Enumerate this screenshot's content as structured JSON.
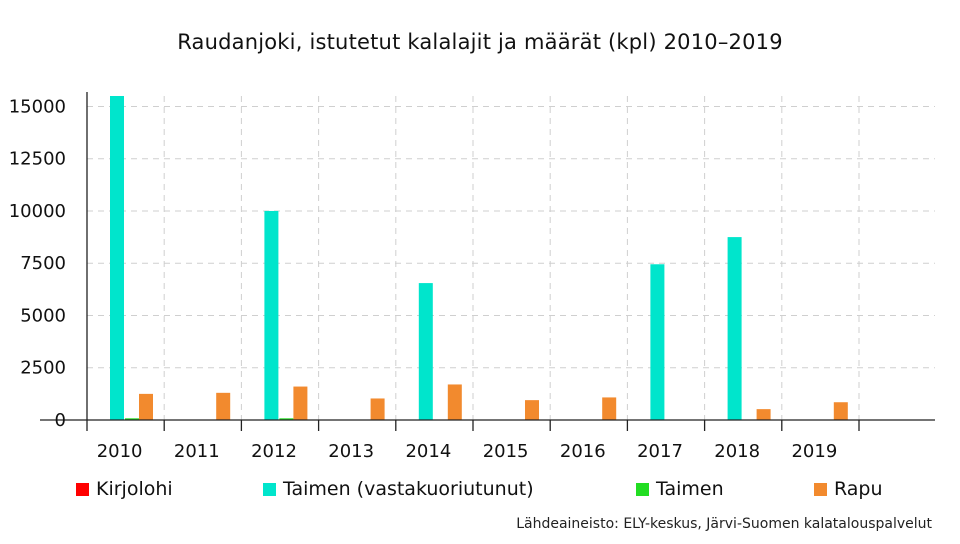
{
  "chart_data": {
    "type": "bar",
    "title": "Raudanjoki, istutetut kalalajit ja määrät (kpl) 2010–2019",
    "categories": [
      "2010",
      "2011",
      "2012",
      "2013",
      "2014",
      "2015",
      "2016",
      "2017",
      "2018",
      "2019"
    ],
    "series": [
      {
        "name": "Kirjolohi",
        "color": "#ff0000",
        "values": [
          0,
          0,
          0,
          0,
          0,
          0,
          0,
          0,
          0,
          0
        ]
      },
      {
        "name": "Taimen (vastakuoriutunut)",
        "color": "#00e5cc",
        "values": [
          15500,
          0,
          10000,
          0,
          6550,
          0,
          0,
          7450,
          8750,
          0
        ]
      },
      {
        "name": "Taimen",
        "color": "#22dd22",
        "values": [
          80,
          0,
          80,
          0,
          0,
          0,
          0,
          0,
          0,
          0
        ]
      },
      {
        "name": "Rapu",
        "color": "#f28a2e",
        "values": [
          1250,
          1300,
          1600,
          1030,
          1700,
          950,
          1080,
          0,
          520,
          850
        ]
      }
    ],
    "yticks": [
      "0",
      "2500",
      "5000",
      "7500",
      "10000",
      "12500",
      "15000"
    ],
    "ylim": [
      0,
      15500
    ],
    "grid": true,
    "legend_position": "bottom"
  },
  "source_note": "Lähdeaineisto: ELY-keskus, Järvi-Suomen kalatalouspalvelut"
}
